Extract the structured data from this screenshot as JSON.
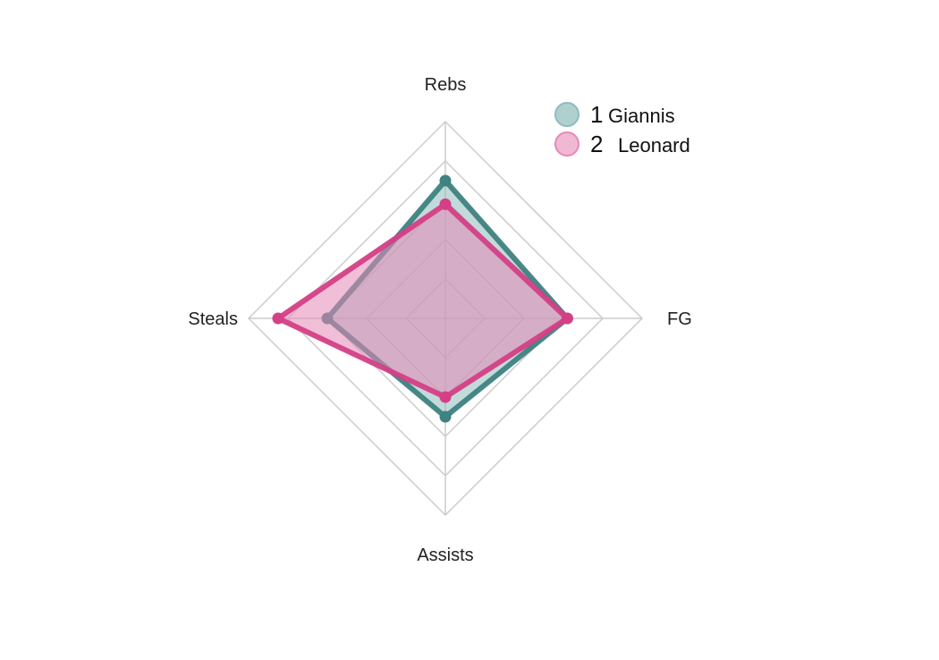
{
  "chart_data": {
    "type": "radar",
    "title": "",
    "axes": [
      "Rebs",
      "FG",
      "Assists",
      "Steals"
    ],
    "range": [
      0,
      1
    ],
    "grid_levels": 5,
    "grid": true,
    "legend_position": "top-right",
    "series": [
      {
        "legend_number": "1",
        "name": "Giannis",
        "values": [
          0.7,
          0.62,
          0.5,
          0.6
        ],
        "color": "#3e8281",
        "fill_color": "#8fbcbc"
      },
      {
        "legend_number": "2",
        "name": "Leonard",
        "values": [
          0.58,
          0.62,
          0.4,
          0.85
        ],
        "color": "#d43f86",
        "fill_color": "#e689b6"
      }
    ]
  }
}
